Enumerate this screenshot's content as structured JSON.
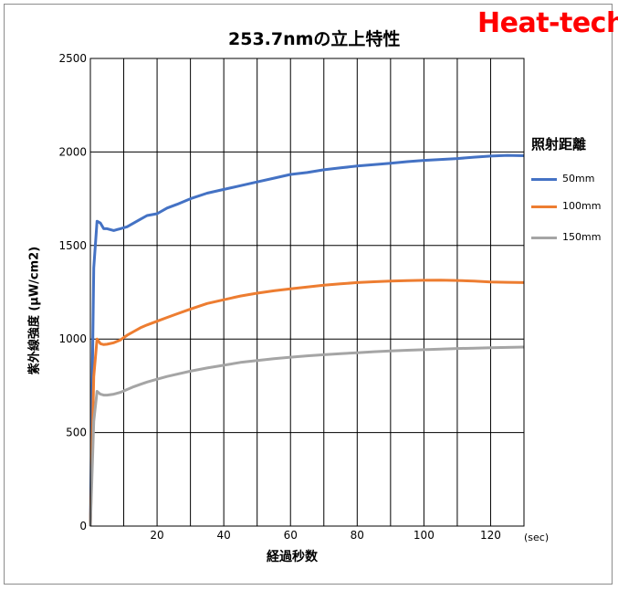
{
  "brand": "Heat-tech",
  "colors": {
    "s50": "#4472c4",
    "s100": "#ed7d31",
    "s150": "#a5a5a5"
  },
  "chart_data": {
    "type": "line",
    "title": "253.7nmの立上特性",
    "xlabel": "経過秒数",
    "x_unit": "(sec)",
    "ylabel": "紫外線強度 (μW/cm2)",
    "legend_title": "照射距離",
    "legend_position": "right",
    "grid": true,
    "xlim": [
      0,
      130
    ],
    "ylim": [
      0,
      2500
    ],
    "x_ticks": [
      20,
      40,
      60,
      80,
      100,
      120
    ],
    "y_ticks": [
      0,
      500,
      1000,
      1500,
      2000,
      2500
    ],
    "series": [
      {
        "name": "50mm",
        "points": [
          [
            0,
            0
          ],
          [
            1,
            1380
          ],
          [
            2,
            1630
          ],
          [
            3,
            1620
          ],
          [
            4,
            1590
          ],
          [
            5,
            1590
          ],
          [
            7,
            1580
          ],
          [
            9,
            1590
          ],
          [
            11,
            1600
          ],
          [
            13,
            1620
          ],
          [
            15,
            1640
          ],
          [
            17,
            1660
          ],
          [
            20,
            1670
          ],
          [
            23,
            1700
          ],
          [
            26,
            1720
          ],
          [
            30,
            1750
          ],
          [
            35,
            1780
          ],
          [
            40,
            1800
          ],
          [
            45,
            1820
          ],
          [
            50,
            1840
          ],
          [
            55,
            1860
          ],
          [
            60,
            1880
          ],
          [
            65,
            1890
          ],
          [
            70,
            1905
          ],
          [
            75,
            1915
          ],
          [
            80,
            1925
          ],
          [
            85,
            1932
          ],
          [
            90,
            1940
          ],
          [
            95,
            1948
          ],
          [
            100,
            1955
          ],
          [
            105,
            1960
          ],
          [
            110,
            1965
          ],
          [
            115,
            1972
          ],
          [
            120,
            1978
          ],
          [
            125,
            1982
          ],
          [
            130,
            1980
          ]
        ]
      },
      {
        "name": "100mm",
        "points": [
          [
            0,
            0
          ],
          [
            1,
            800
          ],
          [
            2,
            1000
          ],
          [
            3,
            975
          ],
          [
            4,
            970
          ],
          [
            5,
            972
          ],
          [
            7,
            980
          ],
          [
            9,
            995
          ],
          [
            11,
            1020
          ],
          [
            13,
            1040
          ],
          [
            15,
            1060
          ],
          [
            17,
            1075
          ],
          [
            20,
            1095
          ],
          [
            23,
            1115
          ],
          [
            26,
            1135
          ],
          [
            30,
            1160
          ],
          [
            35,
            1190
          ],
          [
            40,
            1210
          ],
          [
            45,
            1230
          ],
          [
            50,
            1245
          ],
          [
            55,
            1258
          ],
          [
            60,
            1268
          ],
          [
            65,
            1278
          ],
          [
            70,
            1288
          ],
          [
            75,
            1295
          ],
          [
            80,
            1302
          ],
          [
            85,
            1306
          ],
          [
            90,
            1310
          ],
          [
            95,
            1312
          ],
          [
            100,
            1314
          ],
          [
            105,
            1315
          ],
          [
            110,
            1313
          ],
          [
            115,
            1310
          ],
          [
            120,
            1305
          ],
          [
            125,
            1303
          ],
          [
            130,
            1302
          ]
        ]
      },
      {
        "name": "150mm",
        "points": [
          [
            0,
            0
          ],
          [
            1,
            560
          ],
          [
            2,
            720
          ],
          [
            3,
            705
          ],
          [
            4,
            700
          ],
          [
            5,
            700
          ],
          [
            7,
            705
          ],
          [
            9,
            715
          ],
          [
            11,
            730
          ],
          [
            13,
            745
          ],
          [
            15,
            758
          ],
          [
            17,
            770
          ],
          [
            20,
            785
          ],
          [
            23,
            800
          ],
          [
            26,
            812
          ],
          [
            30,
            828
          ],
          [
            35,
            845
          ],
          [
            40,
            860
          ],
          [
            45,
            875
          ],
          [
            50,
            885
          ],
          [
            55,
            895
          ],
          [
            60,
            903
          ],
          [
            65,
            910
          ],
          [
            70,
            916
          ],
          [
            75,
            922
          ],
          [
            80,
            927
          ],
          [
            85,
            932
          ],
          [
            90,
            936
          ],
          [
            95,
            940
          ],
          [
            100,
            943
          ],
          [
            105,
            946
          ],
          [
            110,
            949
          ],
          [
            115,
            951
          ],
          [
            120,
            953
          ],
          [
            125,
            955
          ],
          [
            130,
            957
          ]
        ]
      }
    ]
  }
}
